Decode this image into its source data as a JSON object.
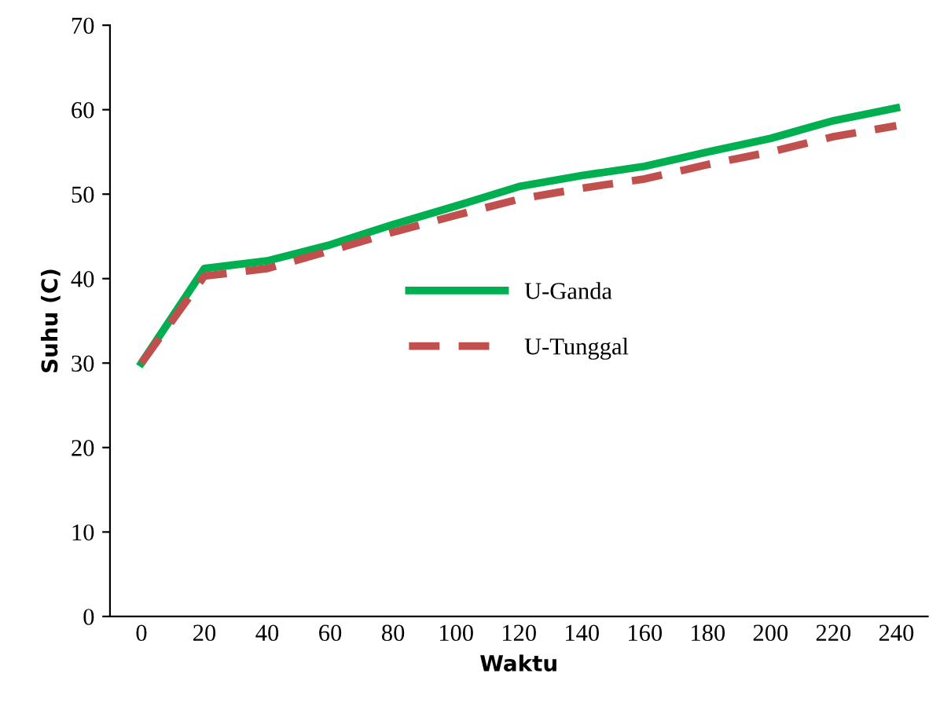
{
  "chart_data": {
    "type": "line",
    "xlabel": "Waktu",
    "ylabel": "Suhu (C)",
    "categories": [
      "0",
      "20",
      "40",
      "60",
      "80",
      "100",
      "120",
      "140",
      "160",
      "180",
      "200",
      "220",
      "240"
    ],
    "series": [
      {
        "name": "U-Ganda",
        "color": "#00b050",
        "line_style": "solid",
        "values": [
          30,
          41.2,
          42.1,
          44,
          46.4,
          48.6,
          50.9,
          52.2,
          53.3,
          55,
          56.6,
          58.7,
          60.2
        ]
      },
      {
        "name": "U-Tunggal",
        "color": "#c0504d",
        "line_style": "dashed",
        "values": [
          30,
          40.3,
          41.2,
          43.3,
          45.5,
          47.5,
          49.4,
          50.7,
          51.8,
          53.5,
          55,
          56.8,
          58.1
        ]
      }
    ],
    "ylim": [
      0,
      70
    ],
    "yticks": [
      0,
      10,
      20,
      30,
      40,
      50,
      60,
      70
    ],
    "grid": false,
    "legend": "center",
    "marker": "none"
  }
}
